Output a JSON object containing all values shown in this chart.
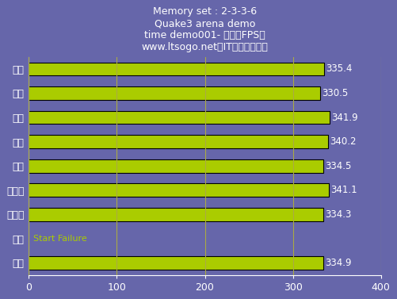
{
  "title_lines": [
    "Memory set : 2-3-3-6",
    "Quake3 arena demo",
    "time demo001- 帧率（FPS）",
    "www.ltsogo.net［IT搜购评测室］"
  ],
  "categories": [
    "勤茅",
    "金邦",
    "超胜",
    "现代",
    "宇睿",
    "金士顿",
    "金士泰",
    "光电",
    "威刚"
  ],
  "values": [
    335.4,
    330.5,
    341.9,
    340.2,
    334.5,
    341.1,
    334.3,
    0,
    334.9
  ],
  "failure_label": "Start Failure",
  "failure_index": 7,
  "bar_color": "#aacc00",
  "bar_edge_color": "#000000",
  "background_color": "#6666aa",
  "text_color": "#ffffff",
  "grid_color": "#aaaa44",
  "xlim": [
    0,
    400
  ],
  "xticks": [
    0,
    100,
    200,
    300,
    400
  ],
  "bar_height": 0.55,
  "title_fontsize": 9,
  "label_fontsize": 9,
  "tick_fontsize": 9,
  "value_fontsize": 8.5,
  "failure_fontsize": 8
}
